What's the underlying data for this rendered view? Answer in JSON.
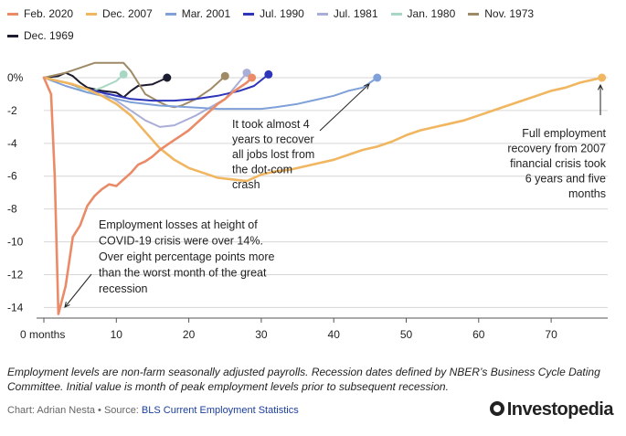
{
  "chart_data": {
    "type": "line",
    "title": "",
    "xlabel": "",
    "ylabel": "",
    "x_tick_labels": [
      "0 months",
      "10",
      "20",
      "30",
      "40",
      "50",
      "60",
      "70"
    ],
    "x_ticks": [
      0,
      10,
      20,
      30,
      40,
      50,
      60,
      70
    ],
    "y_tick_labels": [
      "0%",
      "-2",
      "-4",
      "-6",
      "-8",
      "-10",
      "-12",
      "-14"
    ],
    "y_ticks": [
      0,
      -2,
      -4,
      -6,
      -8,
      -10,
      -12,
      -14
    ],
    "xlim": [
      -2,
      79
    ],
    "ylim": [
      -14.5,
      1
    ],
    "grid": "horizontal",
    "legend_position": "top",
    "series": [
      {
        "name": "Feb. 2020",
        "color": "#ea8a67",
        "width": 2.6,
        "points": [
          [
            0,
            0
          ],
          [
            1,
            -1
          ],
          [
            1.5,
            -6
          ],
          [
            2,
            -14.4
          ],
          [
            3,
            -12.7
          ],
          [
            4,
            -9.7
          ],
          [
            5,
            -9
          ],
          [
            6,
            -7.8
          ],
          [
            7,
            -7.2
          ],
          [
            8,
            -6.8
          ],
          [
            9,
            -6.5
          ],
          [
            10,
            -6.6
          ],
          [
            11,
            -6.2
          ],
          [
            12,
            -5.8
          ],
          [
            13,
            -5.3
          ],
          [
            14,
            -5.1
          ],
          [
            15,
            -4.8
          ],
          [
            16,
            -4.4
          ],
          [
            17,
            -4.1
          ],
          [
            18,
            -3.8
          ],
          [
            19,
            -3.5
          ],
          [
            20,
            -3.2
          ],
          [
            21,
            -2.8
          ],
          [
            22,
            -2.4
          ],
          [
            23,
            -2
          ],
          [
            24,
            -1.6
          ],
          [
            25,
            -1.3
          ],
          [
            26,
            -0.9
          ],
          [
            27,
            -0.6
          ],
          [
            28,
            -0.3
          ],
          [
            28.7,
            0
          ]
        ]
      },
      {
        "name": "Dec. 2007",
        "color": "#f0b660",
        "width": 2.6,
        "points": [
          [
            0,
            0
          ],
          [
            2,
            -0.2
          ],
          [
            4,
            -0.4
          ],
          [
            6,
            -0.7
          ],
          [
            8,
            -1.1
          ],
          [
            10,
            -1.6
          ],
          [
            12,
            -2.3
          ],
          [
            14,
            -3.3
          ],
          [
            16,
            -4.3
          ],
          [
            18,
            -5
          ],
          [
            20,
            -5.5
          ],
          [
            22,
            -5.8
          ],
          [
            24,
            -6.1
          ],
          [
            26,
            -6.2
          ],
          [
            28,
            -6.3
          ],
          [
            30,
            -5.9
          ],
          [
            32,
            -5.7
          ],
          [
            34,
            -5.6
          ],
          [
            36,
            -5.4
          ],
          [
            38,
            -5.2
          ],
          [
            40,
            -5
          ],
          [
            42,
            -4.7
          ],
          [
            44,
            -4.4
          ],
          [
            46,
            -4.2
          ],
          [
            48,
            -3.9
          ],
          [
            50,
            -3.5
          ],
          [
            52,
            -3.2
          ],
          [
            54,
            -3
          ],
          [
            56,
            -2.8
          ],
          [
            58,
            -2.6
          ],
          [
            60,
            -2.3
          ],
          [
            62,
            -2
          ],
          [
            64,
            -1.7
          ],
          [
            66,
            -1.4
          ],
          [
            68,
            -1.1
          ],
          [
            70,
            -0.8
          ],
          [
            72,
            -0.6
          ],
          [
            74,
            -0.3
          ],
          [
            77,
            0
          ]
        ]
      },
      {
        "name": "Mar. 2001",
        "color": "#7fa0d8",
        "width": 2,
        "points": [
          [
            0,
            0
          ],
          [
            3,
            -0.5
          ],
          [
            6,
            -0.9
          ],
          [
            9,
            -1.2
          ],
          [
            12,
            -1.5
          ],
          [
            16,
            -1.7
          ],
          [
            20,
            -1.8
          ],
          [
            24,
            -1.9
          ],
          [
            28,
            -1.9
          ],
          [
            30,
            -1.9
          ],
          [
            32,
            -1.8
          ],
          [
            35,
            -1.6
          ],
          [
            37,
            -1.4
          ],
          [
            40,
            -1.1
          ],
          [
            42,
            -0.8
          ],
          [
            44,
            -0.6
          ],
          [
            46,
            0
          ]
        ]
      },
      {
        "name": "Jul. 1990",
        "color": "#2e35b8",
        "width": 2,
        "points": [
          [
            0,
            0
          ],
          [
            3,
            -0.3
          ],
          [
            6,
            -0.7
          ],
          [
            9,
            -1
          ],
          [
            12,
            -1.3
          ],
          [
            15,
            -1.4
          ],
          [
            18,
            -1.4
          ],
          [
            21,
            -1.3
          ],
          [
            24,
            -1.1
          ],
          [
            27,
            -0.8
          ],
          [
            29,
            -0.5
          ],
          [
            31,
            0.2
          ]
        ]
      },
      {
        "name": "Jul. 1981",
        "color": "#a9aed8",
        "width": 2,
        "points": [
          [
            0,
            0
          ],
          [
            2,
            -0.2
          ],
          [
            4,
            -0.4
          ],
          [
            6,
            -0.7
          ],
          [
            8,
            -0.9
          ],
          [
            10,
            -1.4
          ],
          [
            12,
            -2
          ],
          [
            14,
            -2.6
          ],
          [
            16,
            -3
          ],
          [
            18,
            -2.9
          ],
          [
            19,
            -2.7
          ],
          [
            21,
            -2.3
          ],
          [
            23,
            -1.8
          ],
          [
            25,
            -1.3
          ],
          [
            26.5,
            -0.5
          ],
          [
            28,
            0.3
          ]
        ]
      },
      {
        "name": "Jan. 1980",
        "color": "#a8d8c4",
        "width": 2,
        "points": [
          [
            0,
            0
          ],
          [
            2,
            -0.2
          ],
          [
            4,
            -0.4
          ],
          [
            5,
            -0.7
          ],
          [
            6,
            -0.9
          ],
          [
            8,
            -0.6
          ],
          [
            10,
            -0.2
          ],
          [
            11,
            0.2
          ]
        ]
      },
      {
        "name": "Nov. 1973",
        "color": "#9e8a66",
        "width": 2,
        "points": [
          [
            0,
            0
          ],
          [
            3,
            0.3
          ],
          [
            5,
            0.6
          ],
          [
            7,
            0.9
          ],
          [
            9,
            0.9
          ],
          [
            11,
            0.9
          ],
          [
            12,
            0.4
          ],
          [
            13,
            -0.3
          ],
          [
            14,
            -1
          ],
          [
            16,
            -1.5
          ],
          [
            17,
            -1.7
          ],
          [
            18,
            -1.8
          ],
          [
            19,
            -1.7
          ],
          [
            21,
            -1.3
          ],
          [
            23,
            -0.7
          ],
          [
            25,
            0.1
          ]
        ]
      },
      {
        "name": "Dec. 1969",
        "color": "#1c1c30",
        "width": 2,
        "points": [
          [
            0,
            0
          ],
          [
            2,
            0.1
          ],
          [
            3,
            0.3
          ],
          [
            4,
            0.1
          ],
          [
            5,
            -0.3
          ],
          [
            6,
            -0.6
          ],
          [
            8,
            -0.8
          ],
          [
            10,
            -0.9
          ],
          [
            11,
            -1.2
          ],
          [
            12,
            -0.8
          ],
          [
            13,
            -0.5
          ],
          [
            15,
            -0.4
          ],
          [
            16,
            -0.2
          ],
          [
            17,
            0
          ]
        ]
      }
    ],
    "annotations": [
      {
        "text": "Employment losses at height of COVID-19 crisis were over 14%. Over eight percentage points more than the worst month of the great recession",
        "lines": [
          "Employment losses at height of",
          "COVID-19 crisis were over 14%.",
          "Over eight percentage points more",
          "than the worst month of the great",
          "recession"
        ]
      },
      {
        "text": "It took almost 4 years to recover all jobs lost from the dot-com crash",
        "lines": [
          "It took almost 4",
          "years to recover",
          "all jobs lost from",
          "the dot-com",
          "crash"
        ]
      },
      {
        "text": "Full employment recovery from 2007 financial crisis took 6 years and five months",
        "lines": [
          "Full employment",
          "recovery from 2007",
          "financial crisis took",
          "6 years and five",
          "months"
        ]
      }
    ]
  },
  "footnote": "Employment levels are non-farm seasonally adjusted payrolls. Recession dates defined by NBER’s Business Cycle Dating Committee. Initial value is month of peak employment levels prior to subsequent recession.",
  "credit": {
    "prefix": "Chart: Adrian Nesta • Source: ",
    "link": "BLS Current Employment Statistics"
  },
  "logo": "Investopedia"
}
